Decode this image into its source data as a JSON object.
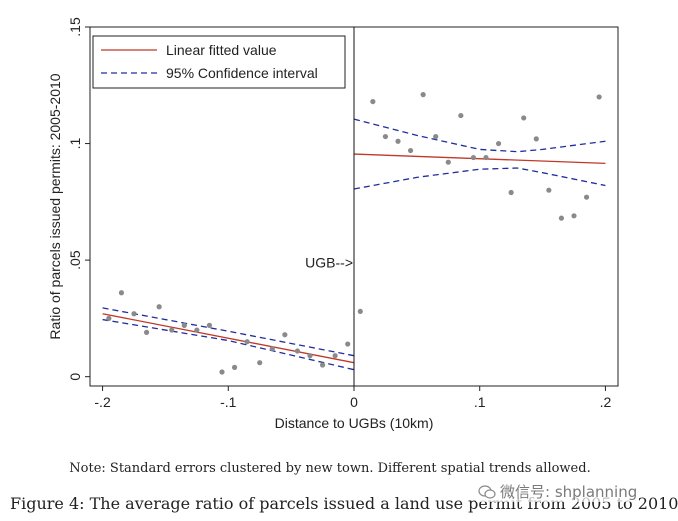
{
  "chart_data": {
    "type": "scatter",
    "xlabel": "Distance to UGBs (10km)",
    "ylabel": "Ratio of parcels issued permits: 2005-2010",
    "xlim": [
      -0.2,
      0.2
    ],
    "ylim": [
      0,
      0.15
    ],
    "x_ticks": [
      -0.2,
      -0.1,
      0,
      0.1,
      0.2
    ],
    "x_tick_labels": [
      "-.2",
      "-.1",
      "0",
      ".1",
      ".2"
    ],
    "y_ticks": [
      0,
      0.05,
      0.1,
      0.15
    ],
    "y_tick_labels": [
      "0",
      ".05",
      ".1",
      ".15"
    ],
    "annotation": "UGB-->",
    "legend": {
      "placement": "top-left",
      "entries": [
        {
          "label": "Linear fitted value",
          "color": "#c0392b",
          "style": "solid"
        },
        {
          "label": "95% Confidence interval",
          "color": "#1f2e9e",
          "style": "dashed"
        }
      ]
    },
    "points": [
      {
        "x": -0.195,
        "y": 0.025
      },
      {
        "x": -0.185,
        "y": 0.036
      },
      {
        "x": -0.175,
        "y": 0.027
      },
      {
        "x": -0.165,
        "y": 0.019
      },
      {
        "x": -0.155,
        "y": 0.03
      },
      {
        "x": -0.145,
        "y": 0.02
      },
      {
        "x": -0.135,
        "y": 0.022
      },
      {
        "x": -0.125,
        "y": 0.02
      },
      {
        "x": -0.115,
        "y": 0.022
      },
      {
        "x": -0.105,
        "y": 0.002
      },
      {
        "x": -0.095,
        "y": 0.004
      },
      {
        "x": -0.085,
        "y": 0.015
      },
      {
        "x": -0.075,
        "y": 0.006
      },
      {
        "x": -0.065,
        "y": 0.012
      },
      {
        "x": -0.055,
        "y": 0.018
      },
      {
        "x": -0.045,
        "y": 0.011
      },
      {
        "x": -0.035,
        "y": 0.009
      },
      {
        "x": -0.025,
        "y": 0.005
      },
      {
        "x": -0.015,
        "y": 0.009
      },
      {
        "x": -0.005,
        "y": 0.014
      },
      {
        "x": 0.005,
        "y": 0.028
      },
      {
        "x": 0.015,
        "y": 0.118
      },
      {
        "x": 0.025,
        "y": 0.103
      },
      {
        "x": 0.035,
        "y": 0.101
      },
      {
        "x": 0.045,
        "y": 0.097
      },
      {
        "x": 0.055,
        "y": 0.121
      },
      {
        "x": 0.065,
        "y": 0.103
      },
      {
        "x": 0.075,
        "y": 0.092
      },
      {
        "x": 0.085,
        "y": 0.112
      },
      {
        "x": 0.095,
        "y": 0.094
      },
      {
        "x": 0.105,
        "y": 0.094
      },
      {
        "x": 0.115,
        "y": 0.1
      },
      {
        "x": 0.125,
        "y": 0.079
      },
      {
        "x": 0.135,
        "y": 0.111
      },
      {
        "x": 0.145,
        "y": 0.102
      },
      {
        "x": 0.155,
        "y": 0.08
      },
      {
        "x": 0.165,
        "y": 0.068
      },
      {
        "x": 0.175,
        "y": 0.069
      },
      {
        "x": 0.185,
        "y": 0.077
      },
      {
        "x": 0.195,
        "y": 0.12
      }
    ],
    "fit_left": {
      "x": [
        -0.2,
        0
      ],
      "y": [
        0.027,
        0.006
      ]
    },
    "ci_left_upper": {
      "x": [
        -0.2,
        -0.1,
        0
      ],
      "y": [
        0.0295,
        0.0195,
        0.009
      ]
    },
    "ci_left_lower": {
      "x": [
        -0.2,
        -0.1,
        0
      ],
      "y": [
        0.0245,
        0.0155,
        0.003
      ]
    },
    "fit_right": {
      "x": [
        0,
        0.2
      ],
      "y": [
        0.0955,
        0.0915
      ]
    },
    "ci_right_upper": {
      "x": [
        0,
        0.05,
        0.1,
        0.13,
        0.15,
        0.2
      ],
      "y": [
        0.1105,
        0.1035,
        0.0975,
        0.0965,
        0.0975,
        0.101
      ]
    },
    "ci_right_lower": {
      "x": [
        0,
        0.05,
        0.1,
        0.13,
        0.15,
        0.2
      ],
      "y": [
        0.0805,
        0.0855,
        0.089,
        0.0895,
        0.0875,
        0.082
      ]
    }
  },
  "note": "Note: Standard errors clustered by new town. Different spatial trends allowed.",
  "caption": "Figure 4: The average ratio of parcels issued a land use permit from 2005 to 2010",
  "watermark": "微信号: shplanning",
  "watermark_icon": "wechat-icon"
}
